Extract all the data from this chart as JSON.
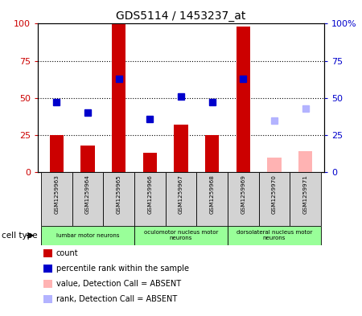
{
  "title": "GDS5114 / 1453237_at",
  "samples": [
    "GSM1259963",
    "GSM1259964",
    "GSM1259965",
    "GSM1259966",
    "GSM1259967",
    "GSM1259968",
    "GSM1259969",
    "GSM1259970",
    "GSM1259971"
  ],
  "count_values": [
    25,
    18,
    100,
    13,
    32,
    25,
    98,
    null,
    null
  ],
  "count_absent": [
    null,
    null,
    null,
    null,
    null,
    null,
    null,
    10,
    14
  ],
  "rank_values": [
    47,
    40,
    63,
    36,
    51,
    47,
    63,
    null,
    null
  ],
  "rank_absent": [
    null,
    null,
    null,
    null,
    null,
    null,
    null,
    35,
    43
  ],
  "ylim": [
    0,
    100
  ],
  "cell_types": [
    {
      "label": "lumbar motor neurons",
      "start": 0,
      "end": 3
    },
    {
      "label": "oculomotor nucleus motor\nneurons",
      "start": 3,
      "end": 6
    },
    {
      "label": "dorsolateral nucleus motor\nneurons",
      "start": 6,
      "end": 9
    }
  ],
  "count_color": "#cc0000",
  "count_absent_color": "#ffb3b3",
  "rank_color": "#0000cc",
  "rank_absent_color": "#b3b3ff",
  "bar_width": 0.45,
  "cell_type_bg": "#99ff99",
  "bg_color": "#d3d3d3",
  "plot_bg": "#ffffff",
  "legend_items": [
    {
      "label": "count",
      "color": "#cc0000"
    },
    {
      "label": "percentile rank within the sample",
      "color": "#0000cc"
    },
    {
      "label": "value, Detection Call = ABSENT",
      "color": "#ffb3b3"
    },
    {
      "label": "rank, Detection Call = ABSENT",
      "color": "#b3b3ff"
    }
  ]
}
